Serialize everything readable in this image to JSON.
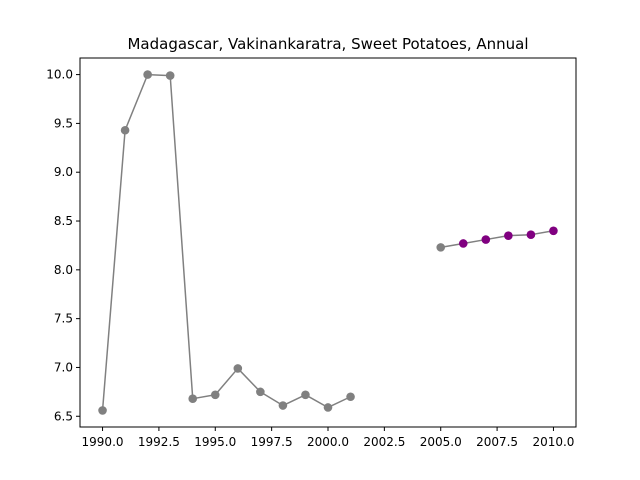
{
  "chart_data": {
    "type": "line",
    "title": "Madagascar, Vakinankaratra, Sweet Potatoes, Annual",
    "xlabel": "",
    "ylabel": "",
    "xlim": [
      1989,
      2011
    ],
    "ylim": [
      6.39,
      10.17
    ],
    "x_ticks": [
      1990.0,
      1992.5,
      1995.0,
      1997.5,
      2000.0,
      2002.5,
      2005.0,
      2007.5,
      2010.0
    ],
    "x_tick_labels": [
      "1990.0",
      "1992.5",
      "1995.0",
      "1997.5",
      "2000.0",
      "2002.5",
      "2005.0",
      "2007.5",
      "2010.0"
    ],
    "y_ticks": [
      6.5,
      7.0,
      7.5,
      8.0,
      8.5,
      9.0,
      9.5,
      10.0
    ],
    "y_tick_labels": [
      "6.5",
      "7.0",
      "7.5",
      "8.0",
      "8.5",
      "9.0",
      "9.5",
      "10.0"
    ],
    "grid": false,
    "line_color": "#808080",
    "series": [
      {
        "color": "#808080",
        "points": [
          {
            "x": 1990,
            "y": 6.56
          },
          {
            "x": 1991,
            "y": 9.43
          },
          {
            "x": 1992,
            "y": 10.0
          },
          {
            "x": 1993,
            "y": 9.99
          },
          {
            "x": 1994,
            "y": 6.68
          },
          {
            "x": 1995,
            "y": 6.72
          },
          {
            "x": 1996,
            "y": 6.99
          },
          {
            "x": 1997,
            "y": 6.75
          },
          {
            "x": 1998,
            "y": 6.61
          },
          {
            "x": 1999,
            "y": 6.72
          },
          {
            "x": 2000,
            "y": 6.59
          },
          {
            "x": 2001,
            "y": 6.7
          }
        ]
      },
      {
        "color": "#808080",
        "points": [
          {
            "x": 2005,
            "y": 8.23,
            "color": "#808080"
          },
          {
            "x": 2006,
            "y": 8.27,
            "color": "#800080"
          },
          {
            "x": 2007,
            "y": 8.31,
            "color": "#800080"
          },
          {
            "x": 2008,
            "y": 8.35,
            "color": "#800080"
          },
          {
            "x": 2009,
            "y": 8.36,
            "color": "#800080"
          },
          {
            "x": 2010,
            "y": 8.4,
            "color": "#800080"
          }
        ]
      }
    ]
  }
}
